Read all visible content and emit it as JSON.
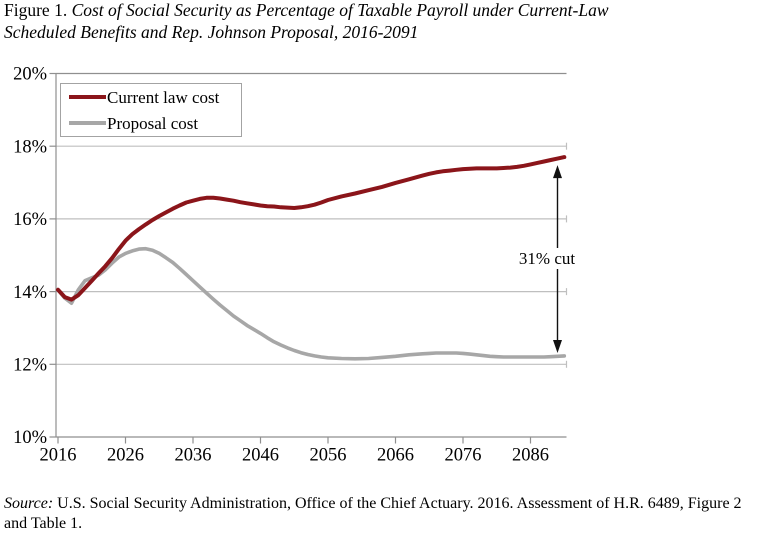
{
  "title": {
    "prefix": "Figure 1. ",
    "line1": "Cost of Social Security as Percentage of Taxable Payroll under Current-Law",
    "line2": "Scheduled Benefits and Rep. Johnson Proposal, 2016-2091"
  },
  "source": {
    "prefix": "Source:",
    "line1": " U.S. Social Security Administration, Office of the Chief Actuary. 2016. Assessment of H.R. 6489, Figure 2",
    "line2": "and Table 1."
  },
  "style": {
    "axis_color": "#8f8f8f",
    "grid_color": "#bfbfbf",
    "legend_border_color": "#a3a3a3",
    "arrow_color": "#111111",
    "text_color": "#000000"
  },
  "chart_data": {
    "type": "line",
    "title": "Figure 1. Cost of Social Security as Percentage of Taxable Payroll under Current-Law Scheduled Benefits and Rep. Johnson Proposal, 2016-2091",
    "xlabel": "",
    "ylabel": "",
    "xlim": [
      2016,
      2091
    ],
    "ylim": [
      10,
      20
    ],
    "grid": "horizontal",
    "legend_position": "top-left",
    "x": [
      2016,
      2017,
      2018,
      2019,
      2020,
      2021,
      2022,
      2023,
      2024,
      2025,
      2026,
      2027,
      2028,
      2029,
      2030,
      2031,
      2032,
      2033,
      2034,
      2035,
      2036,
      2037,
      2038,
      2039,
      2040,
      2041,
      2042,
      2043,
      2044,
      2045,
      2046,
      2047,
      2048,
      2049,
      2050,
      2051,
      2052,
      2053,
      2054,
      2055,
      2056,
      2058,
      2060,
      2062,
      2064,
      2066,
      2068,
      2070,
      2071,
      2072,
      2073,
      2074,
      2075,
      2076,
      2077,
      2078,
      2079,
      2080,
      2081,
      2082,
      2083,
      2084,
      2085,
      2086,
      2087,
      2088,
      2089,
      2090,
      2091
    ],
    "series": [
      {
        "name": "Current law cost",
        "color": "#8b151a",
        "width": 4,
        "values": [
          14.05,
          13.85,
          13.78,
          13.9,
          14.1,
          14.3,
          14.5,
          14.7,
          14.92,
          15.17,
          15.4,
          15.58,
          15.72,
          15.85,
          15.97,
          16.08,
          16.18,
          16.28,
          16.37,
          16.45,
          16.5,
          16.55,
          16.58,
          16.58,
          16.56,
          16.53,
          16.5,
          16.46,
          16.43,
          16.4,
          16.37,
          16.35,
          16.34,
          16.32,
          16.31,
          16.3,
          16.32,
          16.35,
          16.39,
          16.45,
          16.52,
          16.62,
          16.7,
          16.79,
          16.88,
          16.99,
          17.09,
          17.19,
          17.24,
          17.28,
          17.31,
          17.33,
          17.35,
          17.37,
          17.38,
          17.39,
          17.39,
          17.39,
          17.39,
          17.4,
          17.41,
          17.43,
          17.46,
          17.5,
          17.54,
          17.58,
          17.62,
          17.66,
          17.7
        ]
      },
      {
        "name": "Proposal cost",
        "color": "#a7a7a7",
        "width": 3.6,
        "values": [
          14.05,
          13.82,
          13.68,
          14.05,
          14.3,
          14.38,
          14.45,
          14.6,
          14.78,
          14.95,
          15.05,
          15.12,
          15.17,
          15.18,
          15.14,
          15.05,
          14.93,
          14.8,
          14.64,
          14.47,
          14.3,
          14.13,
          13.96,
          13.79,
          13.63,
          13.48,
          13.33,
          13.2,
          13.07,
          12.96,
          12.85,
          12.73,
          12.62,
          12.53,
          12.45,
          12.38,
          12.32,
          12.27,
          12.23,
          12.2,
          12.18,
          12.16,
          12.15,
          12.16,
          12.19,
          12.22,
          12.26,
          12.29,
          12.3,
          12.31,
          12.31,
          12.31,
          12.31,
          12.3,
          12.28,
          12.26,
          12.24,
          12.22,
          12.21,
          12.2,
          12.2,
          12.2,
          12.2,
          12.2,
          12.2,
          12.2,
          12.21,
          12.22,
          12.23
        ]
      }
    ],
    "yticks": [
      {
        "value": 10,
        "label": "10%"
      },
      {
        "value": 12,
        "label": "12%"
      },
      {
        "value": 14,
        "label": "14%"
      },
      {
        "value": 16,
        "label": "16%"
      },
      {
        "value": 18,
        "label": "18%"
      },
      {
        "value": 20,
        "label": "20%"
      }
    ],
    "xticks": [
      {
        "value": 2016,
        "label": "2016"
      },
      {
        "value": 2026,
        "label": "2026"
      },
      {
        "value": 2036,
        "label": "2036"
      },
      {
        "value": 2046,
        "label": "2046"
      },
      {
        "value": 2056,
        "label": "2056"
      },
      {
        "value": 2066,
        "label": "2066"
      },
      {
        "value": 2076,
        "label": "2076"
      },
      {
        "value": 2086,
        "label": "2086"
      }
    ],
    "annotation": {
      "text": "31% cut",
      "x_year": 2090,
      "y_top": 17.48,
      "y_bottom": 12.31,
      "label_center_y": 14.9
    }
  }
}
